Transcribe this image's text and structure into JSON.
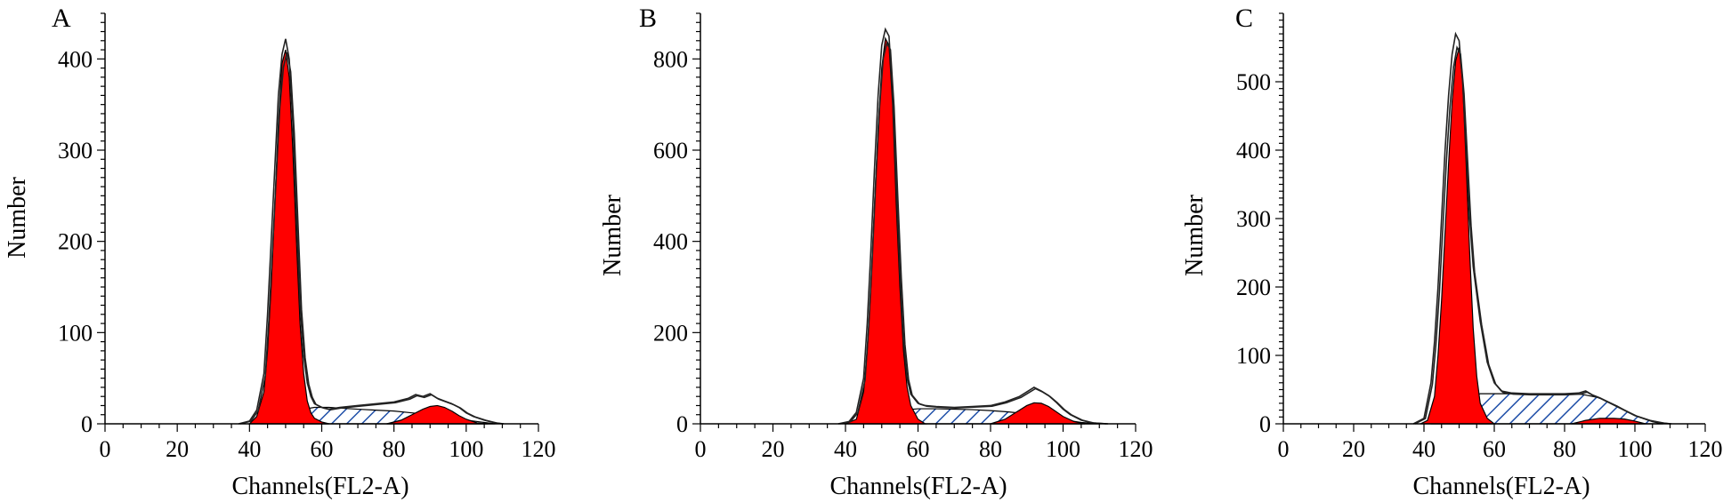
{
  "chart_data": [
    {
      "type": "area",
      "panel_label": "A",
      "xlabel": "Channels(FL2-A)",
      "ylabel": "Number",
      "xlim": [
        0,
        120
      ],
      "ylim": [
        0,
        450
      ],
      "x_ticks": [
        0,
        20,
        40,
        60,
        80,
        100,
        120
      ],
      "y_ticks": [
        0,
        100,
        200,
        300,
        400
      ],
      "grid": false,
      "series": [
        {
          "kind": "histogram-outline",
          "x": [
            37,
            40,
            42,
            44,
            45,
            46,
            47,
            48,
            49,
            50,
            51,
            52,
            53,
            54,
            55,
            56,
            57,
            58,
            60,
            62,
            65,
            70,
            75,
            80,
            84,
            86,
            88,
            90,
            92,
            94,
            96,
            98,
            100,
            102,
            105,
            108,
            110
          ],
          "y": [
            0,
            3,
            15,
            55,
            120,
            200,
            280,
            360,
            405,
            422,
            400,
            330,
            230,
            130,
            75,
            45,
            30,
            22,
            18,
            16,
            18,
            20,
            22,
            24,
            28,
            32,
            30,
            33,
            28,
            25,
            22,
            18,
            12,
            8,
            4,
            1,
            0
          ]
        },
        {
          "kind": "G1-peak-fill",
          "color": "#ff0000",
          "x": [
            40,
            42,
            44,
            45,
            46,
            47,
            48,
            49,
            50,
            51,
            52,
            53,
            54,
            55,
            56,
            57,
            58,
            60,
            62
          ],
          "y": [
            0,
            8,
            35,
            80,
            150,
            240,
            330,
            395,
            410,
            380,
            300,
            200,
            110,
            55,
            25,
            12,
            6,
            2,
            0
          ]
        },
        {
          "kind": "S-phase-fill",
          "color": "#1f4fa8",
          "x": [
            43,
            48,
            52,
            55,
            58,
            62,
            66,
            70,
            75,
            80,
            85,
            90,
            95,
            100,
            104,
            108
          ],
          "y": [
            0,
            6,
            12,
            16,
            18,
            18,
            17,
            16,
            15,
            14,
            12,
            10,
            7,
            4,
            2,
            0
          ]
        },
        {
          "kind": "G2M-peak-fill",
          "color": "#ff0000",
          "x": [
            78,
            82,
            85,
            88,
            90,
            92,
            94,
            96,
            98,
            100,
            103,
            106
          ],
          "y": [
            0,
            4,
            10,
            16,
            19,
            20,
            18,
            14,
            9,
            5,
            1,
            0
          ]
        }
      ]
    },
    {
      "type": "area",
      "panel_label": "B",
      "xlabel": "Channels(FL2-A)",
      "ylabel": "Number",
      "xlim": [
        0,
        120
      ],
      "ylim": [
        0,
        900
      ],
      "x_ticks": [
        0,
        20,
        40,
        60,
        80,
        100,
        120
      ],
      "y_ticks": [
        0,
        200,
        400,
        600,
        800
      ],
      "grid": false,
      "series": [
        {
          "kind": "histogram-outline",
          "x": [
            38,
            41,
            43,
            45,
            46,
            47,
            48,
            49,
            50,
            51,
            52,
            53,
            54,
            55,
            56,
            57,
            58,
            60,
            62,
            65,
            70,
            75,
            80,
            84,
            88,
            90,
            92,
            94,
            96,
            98,
            100,
            102,
            105,
            108,
            112
          ],
          "y": [
            0,
            5,
            25,
            100,
            220,
            380,
            560,
            720,
            830,
            865,
            850,
            720,
            520,
            330,
            180,
            100,
            65,
            45,
            40,
            38,
            36,
            38,
            40,
            48,
            60,
            70,
            80,
            72,
            62,
            48,
            32,
            20,
            8,
            2,
            0
          ]
        },
        {
          "kind": "G1-peak-fill",
          "color": "#ff0000",
          "x": [
            40,
            43,
            45,
            46,
            47,
            48,
            49,
            50,
            51,
            52,
            53,
            54,
            55,
            56,
            57,
            58,
            60,
            62
          ],
          "y": [
            0,
            10,
            70,
            160,
            300,
            480,
            650,
            780,
            845,
            830,
            700,
            480,
            300,
            160,
            80,
            40,
            10,
            0
          ]
        },
        {
          "kind": "S-phase-fill",
          "color": "#1f4fa8",
          "x": [
            44,
            48,
            52,
            56,
            60,
            65,
            70,
            75,
            80,
            85,
            90,
            95,
            100,
            105,
            110
          ],
          "y": [
            0,
            10,
            22,
            30,
            33,
            33,
            32,
            31,
            29,
            26,
            22,
            16,
            9,
            3,
            0
          ]
        },
        {
          "kind": "G2M-peak-fill",
          "color": "#ff0000",
          "x": [
            80,
            84,
            87,
            90,
            92,
            94,
            96,
            98,
            100,
            103,
            106
          ],
          "y": [
            0,
            10,
            25,
            40,
            46,
            45,
            38,
            27,
            16,
            5,
            0
          ]
        }
      ]
    },
    {
      "type": "area",
      "panel_label": "C",
      "xlabel": "Channels(FL2-A)",
      "ylabel": "Number",
      "xlim": [
        0,
        120
      ],
      "ylim": [
        0,
        600
      ],
      "x_ticks": [
        0,
        20,
        40,
        60,
        80,
        100,
        120
      ],
      "y_ticks": [
        0,
        100,
        200,
        300,
        400,
        500
      ],
      "grid": false,
      "series": [
        {
          "kind": "histogram-outline",
          "x": [
            37,
            40,
            42,
            43,
            44,
            45,
            46,
            47,
            48,
            49,
            50,
            51,
            52,
            53,
            54,
            55,
            56,
            58,
            60,
            62,
            65,
            70,
            75,
            80,
            84,
            86,
            88,
            90,
            95,
            100,
            104,
            108,
            110
          ],
          "y": [
            0,
            8,
            60,
            120,
            200,
            300,
            400,
            480,
            540,
            570,
            560,
            500,
            400,
            300,
            230,
            190,
            150,
            90,
            60,
            48,
            45,
            44,
            44,
            44,
            45,
            48,
            42,
            38,
            25,
            12,
            5,
            1,
            0
          ]
        },
        {
          "kind": "G1-peak-fill",
          "color": "#ff0000",
          "x": [
            39,
            41,
            43,
            44,
            45,
            46,
            47,
            48,
            49,
            50,
            51,
            52,
            53,
            54,
            55,
            56,
            58,
            60
          ],
          "y": [
            0,
            5,
            40,
            100,
            180,
            280,
            380,
            470,
            530,
            550,
            500,
            380,
            250,
            140,
            70,
            30,
            8,
            0
          ]
        },
        {
          "kind": "S-phase-fill",
          "color": "#1f4fa8",
          "x": [
            42,
            46,
            50,
            53,
            56,
            60,
            65,
            70,
            75,
            80,
            85,
            90,
            95,
            100,
            105,
            108
          ],
          "y": [
            0,
            10,
            25,
            38,
            44,
            44,
            44,
            44,
            44,
            44,
            43,
            38,
            26,
            12,
            3,
            0
          ]
        },
        {
          "kind": "G2M-peak-fill",
          "color": "#ff0000",
          "x": [
            82,
            86,
            90,
            94,
            97,
            100,
            103
          ],
          "y": [
            0,
            5,
            8,
            8,
            7,
            4,
            0
          ]
        }
      ]
    }
  ]
}
